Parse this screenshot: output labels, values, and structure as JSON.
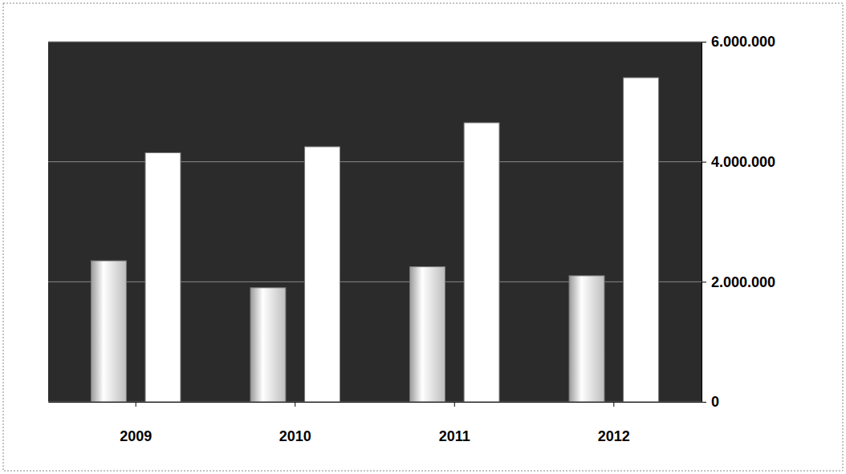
{
  "chart_data": {
    "type": "bar",
    "categories": [
      "2009",
      "2010",
      "2011",
      "2012"
    ],
    "series": [
      {
        "color": "#f2f2f2",
        "values": [
          2350000,
          1900000,
          2250000,
          2100000
        ]
      },
      {
        "color": "#ffffff",
        "values": [
          4150000,
          4250000,
          4650000,
          5400000
        ]
      }
    ],
    "ylim": [
      0,
      6000000
    ],
    "yticks": [
      {
        "value": 0,
        "label": "0"
      },
      {
        "value": 2000000,
        "label": "2.000.000"
      },
      {
        "value": 4000000,
        "label": "4.000.000"
      },
      {
        "value": 6000000,
        "label": "6.000.000"
      }
    ],
    "grid": true
  }
}
